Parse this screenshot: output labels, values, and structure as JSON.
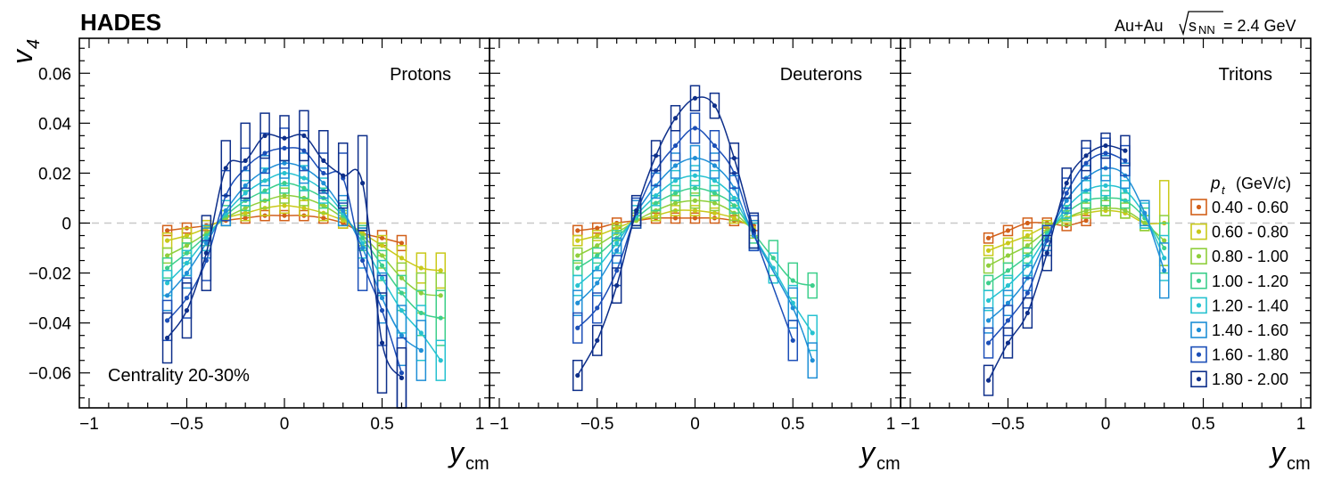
{
  "header": {
    "experiment": "HADES",
    "system": "Au+Au",
    "energy_prefix": "s",
    "energy_sub": "NN",
    "energy_value": "= 2.4 GeV"
  },
  "colors": {
    "pt_bins": [
      "#d2601a",
      "#c9c91a",
      "#8fcf3c",
      "#3dcf8c",
      "#26c2d0",
      "#1f8fd6",
      "#1c4fb8",
      "#0e2f8a"
    ],
    "zero_line": "#c8c8c8",
    "frame": "#000000"
  },
  "chart_data": {
    "type": "scatter",
    "y_axis_label": "v",
    "y_axis_sub": "4",
    "x_axis_label": "y",
    "x_axis_sub": "cm",
    "ylim": [
      -0.074,
      0.074
    ],
    "yticks": [
      0.06,
      0.04,
      0.02,
      0,
      -0.02,
      -0.04,
      -0.06
    ],
    "ytick_labels": [
      "0.06",
      "0.04",
      "0.02",
      "0",
      "−0.02",
      "−0.04",
      "−0.06"
    ],
    "xlim": [
      -1.05,
      1.05
    ],
    "xticks": [
      -1,
      -0.5,
      0,
      0.5,
      1
    ],
    "xtick_labels": [
      "−1",
      "−0.5",
      "0",
      "0.5",
      "1"
    ],
    "annotation": "Centrality 20-30%",
    "legend_title": "p",
    "legend_title_sub": "t",
    "legend_title_unit": "(GeV/c)",
    "pt_bins": [
      "0.40 - 0.60",
      "0.60 - 0.80",
      "0.80 - 1.00",
      "1.00 - 1.20",
      "1.20 - 1.40",
      "1.40 - 1.60",
      "1.60 - 1.80",
      "1.80 - 2.00"
    ],
    "panels": [
      {
        "name": "Protons",
        "x": [
          -0.6,
          -0.5,
          -0.4,
          -0.3,
          -0.2,
          -0.1,
          0,
          0.1,
          0.2,
          0.3,
          0.4,
          0.5,
          0.6,
          0.7,
          0.8
        ],
        "series": [
          {
            "values": [
              -0.003,
              -0.002,
              -0.001,
              0.001,
              0.002,
              0.003,
              0.003,
              0.003,
              0.002,
              0.0,
              -0.004,
              -0.006,
              -0.008,
              null,
              null
            ],
            "errors": [
              0.002,
              0.002,
              0.002,
              0.002,
              0.002,
              0.002,
              0.002,
              0.002,
              0.002,
              0.002,
              0.002,
              0.003,
              0.003,
              null,
              null
            ]
          },
          {
            "values": [
              -0.007,
              -0.005,
              -0.002,
              0.002,
              0.004,
              0.006,
              0.007,
              0.006,
              0.004,
              0.001,
              -0.004,
              -0.009,
              -0.014,
              -0.018,
              -0.019
            ],
            "errors": [
              0.003,
              0.003,
              0.003,
              0.003,
              0.003,
              0.003,
              0.003,
              0.003,
              0.003,
              0.003,
              0.004,
              0.004,
              0.005,
              0.006,
              0.007
            ]
          },
          {
            "values": [
              -0.013,
              -0.009,
              -0.004,
              0.002,
              0.006,
              0.009,
              0.011,
              0.01,
              0.007,
              0.002,
              -0.005,
              -0.013,
              -0.022,
              -0.028,
              -0.029
            ],
            "errors": [
              0.003,
              0.003,
              0.003,
              0.003,
              0.003,
              0.003,
              0.003,
              0.003,
              0.003,
              0.003,
              0.004,
              0.005,
              0.006,
              0.008,
              0.009
            ]
          },
          {
            "values": [
              -0.018,
              -0.012,
              -0.005,
              0.003,
              0.009,
              0.013,
              0.016,
              0.014,
              0.01,
              0.003,
              -0.006,
              -0.017,
              -0.028,
              -0.036,
              -0.038
            ],
            "errors": [
              0.004,
              0.004,
              0.004,
              0.004,
              0.004,
              0.004,
              0.004,
              0.004,
              0.004,
              0.004,
              0.005,
              0.006,
              0.007,
              0.009,
              0.011
            ]
          },
          {
            "values": [
              -0.024,
              -0.016,
              -0.006,
              0.004,
              0.012,
              0.017,
              0.02,
              0.018,
              0.013,
              0.004,
              -0.008,
              -0.022,
              -0.035,
              -0.044,
              -0.055
            ],
            "errors": [
              0.005,
              0.005,
              0.005,
              0.005,
              0.005,
              0.005,
              0.005,
              0.005,
              0.005,
              0.005,
              0.006,
              0.007,
              0.009,
              0.011,
              0.008
            ]
          },
          {
            "values": [
              -0.029,
              -0.02,
              -0.008,
              0.005,
              0.015,
              0.021,
              0.024,
              0.022,
              0.016,
              0.005,
              -0.01,
              -0.03,
              -0.045,
              -0.051,
              null
            ],
            "errors": [
              0.006,
              0.006,
              0.006,
              0.006,
              0.006,
              0.006,
              0.006,
              0.006,
              0.006,
              0.006,
              0.008,
              0.01,
              0.012,
              0.012,
              null
            ]
          },
          {
            "values": [
              -0.039,
              -0.03,
              -0.015,
              0.011,
              0.022,
              0.028,
              0.03,
              0.029,
              0.02,
              0.018,
              -0.015,
              -0.035,
              -0.06,
              null,
              null
            ],
            "errors": [
              0.008,
              0.008,
              0.008,
              0.01,
              0.008,
              0.008,
              0.008,
              0.008,
              0.008,
              0.01,
              0.012,
              0.014,
              0.014,
              null,
              null
            ]
          },
          {
            "values": [
              -0.046,
              -0.035,
              -0.012,
              0.022,
              0.025,
              0.035,
              0.034,
              0.035,
              0.025,
              0.019,
              0.016,
              -0.048,
              -0.062,
              null,
              null
            ],
            "errors": [
              0.01,
              0.011,
              0.015,
              0.011,
              0.015,
              0.009,
              0.009,
              0.01,
              0.012,
              0.013,
              0.019,
              0.02,
              0.012,
              null,
              null
            ]
          }
        ]
      },
      {
        "name": "Deuterons",
        "x": [
          -0.6,
          -0.5,
          -0.4,
          -0.3,
          -0.2,
          -0.1,
          0,
          0.1,
          0.2,
          0.3,
          0.4,
          0.5,
          0.6
        ],
        "series": [
          {
            "values": [
              -0.003,
              -0.002,
              0.0,
              0.001,
              0.002,
              0.002,
              0.002,
              0.002,
              0.001,
              -0.001,
              null,
              null,
              null
            ],
            "errors": [
              0.002,
              0.002,
              0.002,
              0.002,
              0.002,
              0.002,
              0.002,
              0.002,
              0.002,
              0.002,
              null,
              null,
              null
            ]
          },
          {
            "values": [
              -0.007,
              -0.005,
              -0.002,
              0.001,
              0.003,
              0.005,
              0.005,
              0.004,
              0.002,
              -0.002,
              null,
              null,
              null
            ],
            "errors": [
              0.002,
              0.002,
              0.002,
              0.002,
              0.002,
              0.002,
              0.002,
              0.002,
              0.002,
              0.003,
              null,
              null,
              null
            ]
          },
          {
            "values": [
              -0.013,
              -0.009,
              -0.004,
              0.001,
              0.005,
              0.008,
              0.009,
              0.008,
              0.004,
              -0.003,
              null,
              null,
              null
            ],
            "errors": [
              0.003,
              0.003,
              0.003,
              0.003,
              0.003,
              0.003,
              0.003,
              0.003,
              0.003,
              0.003,
              null,
              null,
              null
            ]
          },
          {
            "values": [
              -0.018,
              -0.013,
              -0.006,
              0.002,
              0.008,
              0.012,
              0.014,
              0.012,
              0.007,
              -0.004,
              -0.014,
              -0.023,
              -0.025
            ],
            "errors": [
              0.003,
              0.003,
              0.003,
              0.003,
              0.003,
              0.003,
              0.003,
              0.003,
              0.003,
              0.004,
              0.007,
              0.007,
              0.005
            ]
          },
          {
            "values": [
              -0.025,
              -0.018,
              -0.008,
              0.003,
              0.011,
              0.017,
              0.019,
              0.017,
              0.01,
              -0.005,
              -0.018,
              -0.032,
              -0.044
            ],
            "errors": [
              0.004,
              0.004,
              0.004,
              0.004,
              0.004,
              0.004,
              0.004,
              0.004,
              0.004,
              0.005,
              0.006,
              0.007,
              0.007
            ]
          },
          {
            "values": [
              -0.032,
              -0.024,
              -0.011,
              0.004,
              0.015,
              0.023,
              0.026,
              0.023,
              0.014,
              -0.005,
              null,
              -0.034,
              -0.055
            ],
            "errors": [
              0.005,
              0.005,
              0.005,
              0.005,
              0.005,
              0.005,
              0.005,
              0.005,
              0.005,
              0.006,
              null,
              0.008,
              0.007
            ]
          },
          {
            "values": [
              -0.042,
              -0.034,
              -0.019,
              0.004,
              0.021,
              0.031,
              0.038,
              0.031,
              0.02,
              -0.004,
              null,
              -0.047,
              null
            ],
            "errors": [
              0.006,
              0.006,
              0.006,
              0.006,
              0.006,
              0.006,
              0.006,
              0.006,
              0.006,
              0.007,
              null,
              0.008,
              null
            ]
          },
          {
            "values": [
              -0.061,
              -0.047,
              -0.025,
              0.005,
              0.027,
              0.042,
              0.05,
              0.047,
              0.026,
              -0.003,
              null,
              null,
              null
            ],
            "errors": [
              0.006,
              0.006,
              0.007,
              0.006,
              0.006,
              0.005,
              0.005,
              0.005,
              0.006,
              0.007,
              null,
              null,
              null
            ]
          }
        ]
      },
      {
        "name": "Tritons",
        "x": [
          -0.6,
          -0.5,
          -0.4,
          -0.3,
          -0.2,
          -0.1,
          0,
          0.1,
          0.2,
          0.3
        ],
        "series": [
          {
            "values": [
              -0.006,
              -0.003,
              0.0,
              0.0,
              -0.001,
              0.001,
              null,
              null,
              null,
              null
            ],
            "errors": [
              0.002,
              0.002,
              0.002,
              0.002,
              0.002,
              0.002,
              null,
              null,
              null,
              null
            ]
          },
          {
            "values": [
              -0.011,
              -0.008,
              -0.005,
              -0.001,
              0.002,
              0.004,
              0.005,
              0.004,
              0.0,
              0.0
            ],
            "errors": [
              0.002,
              0.002,
              0.002,
              0.002,
              0.002,
              0.002,
              0.002,
              0.002,
              0.003,
              0.017
            ]
          },
          {
            "values": [
              -0.017,
              -0.013,
              -0.009,
              -0.003,
              0.002,
              0.005,
              0.006,
              0.005,
              0.0,
              -0.007
            ],
            "errors": [
              0.003,
              0.003,
              0.003,
              0.003,
              0.003,
              0.003,
              0.003,
              0.003,
              0.003,
              0.01
            ]
          },
          {
            "values": [
              -0.024,
              -0.019,
              -0.013,
              -0.004,
              0.004,
              0.009,
              0.01,
              0.009,
              0.002,
              -0.01
            ],
            "errors": [
              0.003,
              0.003,
              0.003,
              0.003,
              0.003,
              0.003,
              0.003,
              0.003,
              0.004,
              0.01
            ]
          },
          {
            "values": [
              -0.031,
              -0.025,
              -0.017,
              -0.005,
              0.006,
              0.013,
              0.015,
              0.013,
              0.003,
              -0.014
            ],
            "errors": [
              0.004,
              0.004,
              0.004,
              0.004,
              0.004,
              0.004,
              0.004,
              0.004,
              0.005,
              0.009
            ]
          },
          {
            "values": [
              -0.039,
              -0.032,
              -0.022,
              -0.006,
              0.009,
              0.018,
              0.022,
              0.019,
              0.004,
              -0.019
            ],
            "errors": [
              0.005,
              0.005,
              0.005,
              0.005,
              0.005,
              0.005,
              0.005,
              0.005,
              0.005,
              0.011
            ]
          },
          {
            "values": [
              -0.048,
              -0.039,
              -0.028,
              -0.007,
              0.012,
              0.024,
              0.028,
              0.025,
              null,
              null
            ],
            "errors": [
              0.006,
              0.006,
              0.006,
              0.006,
              0.006,
              0.006,
              0.006,
              0.006,
              null,
              null
            ]
          },
          {
            "values": [
              -0.063,
              -0.048,
              -0.036,
              -0.012,
              0.016,
              0.027,
              0.031,
              0.029,
              null,
              null
            ],
            "errors": [
              0.006,
              0.006,
              0.006,
              0.007,
              0.006,
              0.006,
              0.005,
              0.006,
              null,
              null
            ]
          }
        ]
      }
    ]
  }
}
